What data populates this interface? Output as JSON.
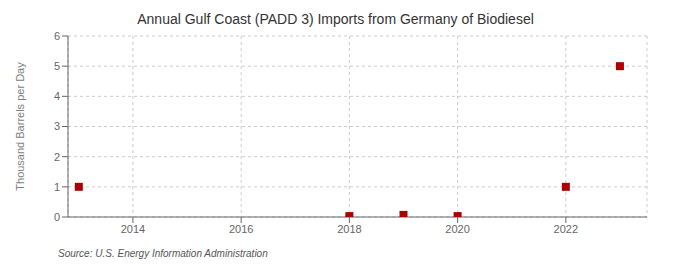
{
  "chart_data": {
    "type": "scatter",
    "title": "Annual Gulf Coast (PADD 3) Imports from Germany of Biodiesel",
    "ylabel": "Thousand Barrels per Day",
    "annotations": [
      "Source: U.S. Energy Information Administration"
    ],
    "x": [
      2013,
      2018,
      2019,
      2020,
      2022,
      2023
    ],
    "values": [
      1.0,
      0.03,
      0.07,
      0.03,
      1.0,
      5.0
    ],
    "color": "#aa0000",
    "marker": "square",
    "xlim": [
      2012.8,
      2023.5
    ],
    "ylim": [
      0,
      6
    ],
    "xticks": [
      2014,
      2016,
      2018,
      2020,
      2022
    ],
    "yticks": [
      0,
      1,
      2,
      3,
      4,
      5,
      6
    ],
    "grid": true
  }
}
